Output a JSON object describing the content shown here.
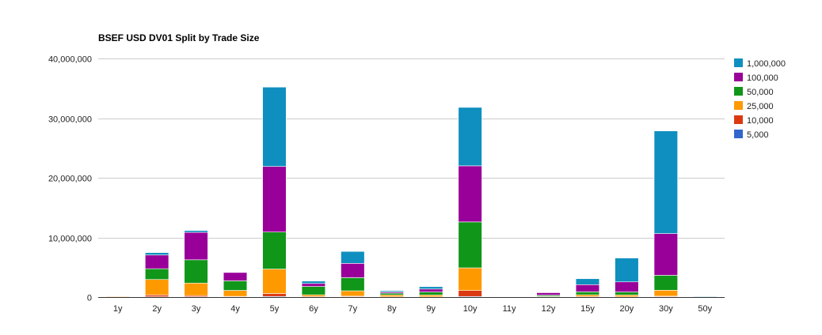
{
  "chart_data": {
    "type": "bar",
    "stacked": true,
    "title": "BSEF USD DV01 Split by Trade Size",
    "xlabel": "",
    "ylabel": "",
    "ylim": [
      0,
      40000000
    ],
    "yticks": [
      0,
      10000000,
      20000000,
      30000000,
      40000000
    ],
    "ytick_labels": [
      "0",
      "10,000,000",
      "20,000,000",
      "30,000,000",
      "40,000,000"
    ],
    "grid": true,
    "legend_position": "right",
    "categories": [
      "1y",
      "2y",
      "3y",
      "4y",
      "5y",
      "6y",
      "7y",
      "8y",
      "9y",
      "10y",
      "11y",
      "12y",
      "15y",
      "20y",
      "30y",
      "50y"
    ],
    "series": [
      {
        "name": "5,000",
        "color": "#3366cc",
        "values": [
          0,
          50000,
          50000,
          20000,
          100000,
          30000,
          50000,
          30000,
          20000,
          100000,
          0,
          10000,
          30000,
          20000,
          50000,
          10000
        ]
      },
      {
        "name": "10,000",
        "color": "#dc3912",
        "values": [
          50000,
          300000,
          200000,
          100000,
          500000,
          50000,
          100000,
          30000,
          30000,
          1000000,
          0,
          20000,
          50000,
          30000,
          100000,
          10000
        ]
      },
      {
        "name": "25,000",
        "color": "#ff9900",
        "values": [
          50000,
          2600000,
          2100000,
          1000000,
          4100000,
          300000,
          900000,
          300000,
          300000,
          3800000,
          0,
          100000,
          300000,
          300000,
          1000000,
          0
        ]
      },
      {
        "name": "50,000",
        "color": "#109618",
        "values": [
          0,
          1800000,
          3900000,
          1600000,
          6200000,
          1400000,
          2200000,
          300000,
          500000,
          7700000,
          0,
          200000,
          500000,
          500000,
          2500000,
          0
        ]
      },
      {
        "name": "100,000",
        "color": "#990099",
        "values": [
          0,
          2300000,
          4600000,
          1400000,
          11000000,
          500000,
          2400000,
          200000,
          500000,
          9400000,
          0,
          400000,
          1200000,
          1700000,
          7000000,
          0
        ]
      },
      {
        "name": "1,000,000",
        "color": "#0f8fbf",
        "values": [
          0,
          400000,
          300000,
          0,
          13300000,
          400000,
          2000000,
          200000,
          400000,
          9800000,
          0,
          0,
          1000000,
          4000000,
          17200000,
          100000
        ]
      }
    ]
  }
}
